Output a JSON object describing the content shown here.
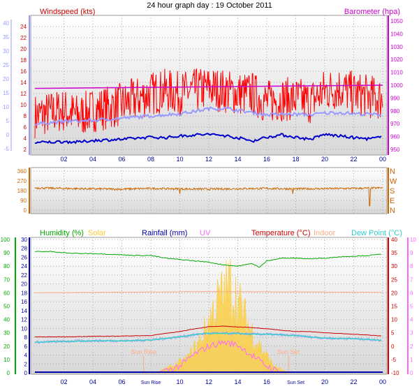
{
  "title": "24 hour graph day : 19 October 2011",
  "colors": {
    "windspeed": "#ff0000",
    "gust": "#ff0000",
    "avg_wind": "#9999ff",
    "wind_axis": "#9999ff",
    "barometer": "#cc00cc",
    "beaufort": "#0000cc",
    "direction": "#cc6600",
    "humidity": "#00aa00",
    "solar": "#ffcc33",
    "rainfall": "#0000aa",
    "uv": "#ff66ff",
    "temperature": "#cc0000",
    "indoor": "#ffaa88",
    "dewpoint": "#33cccc",
    "extra": "#aaaaee",
    "plot_bg_top": "#ffffff",
    "plot_bg_bottom": "#d8d8d8",
    "grid": "#aaaaaa",
    "time_axis": "#000099"
  },
  "chart_data": [
    {
      "type": "line",
      "panel": "wind-barometer",
      "left_title": "Windspeed (kts)",
      "right_title": "Barometer (hpa)",
      "left_outer_ticks": [
        "40",
        "35",
        "30",
        "25",
        "20",
        "15",
        "10",
        "5",
        "0",
        "-5"
      ],
      "left_inner_ticks": [
        "24",
        "22",
        "20",
        "18",
        "16",
        "14",
        "12",
        "10",
        "8",
        "6",
        "4",
        "2"
      ],
      "right_ticks": [
        "1050",
        "1040",
        "1030",
        "1020",
        "1010",
        "1000",
        "990",
        "980",
        "970",
        "960",
        "950"
      ],
      "x_tick_labels": [
        "02",
        "04",
        "06",
        "08",
        "10",
        "12",
        "14",
        "16",
        "18",
        "20",
        "22",
        "00"
      ],
      "ylim": [
        2,
        25
      ],
      "right_ylim": [
        950,
        1050
      ],
      "series": [
        {
          "key": "gust",
          "hours": [
            0,
            1,
            2,
            3,
            4,
            5,
            6,
            7,
            8,
            9,
            10,
            11,
            12,
            13,
            14,
            15,
            16,
            17,
            18,
            19,
            20,
            21,
            22,
            23,
            24
          ],
          "values": [
            8,
            8.5,
            9,
            8,
            9,
            9.5,
            10,
            11,
            12,
            12.5,
            12,
            12.5,
            13,
            12.5,
            12,
            12,
            10.5,
            11,
            11,
            10.5,
            12.5,
            13,
            12,
            11.5,
            11
          ]
        },
        {
          "key": "avg_wind",
          "hours": [
            0,
            1,
            2,
            3,
            4,
            5,
            6,
            7,
            8,
            9,
            10,
            11,
            12,
            13,
            14,
            15,
            16,
            17,
            18,
            19,
            20,
            21,
            22,
            23,
            24
          ],
          "values": [
            6.5,
            6.8,
            7,
            7.1,
            7.2,
            7.4,
            7.6,
            7.8,
            8,
            8.2,
            8.4,
            8.8,
            9.3,
            9.4,
            9,
            8.6,
            8.2,
            8.3,
            8.3,
            8.2,
            8.5,
            8.6,
            8.4,
            8.3,
            8.2
          ]
        },
        {
          "key": "beaufort",
          "hours": [
            0,
            1,
            2,
            3,
            4,
            5,
            6,
            7,
            8,
            9,
            10,
            11,
            12,
            13,
            14,
            15,
            16,
            17,
            18,
            19,
            20,
            21,
            22,
            23,
            24
          ],
          "values": [
            3.2,
            3.3,
            3.4,
            3.3,
            3.6,
            3.7,
            3.8,
            4,
            4.2,
            4.1,
            4.4,
            4.6,
            4.7,
            4.5,
            4.1,
            3.5,
            4.2,
            4.6,
            4.2,
            3.8,
            4.7,
            4.4,
            4.1,
            3.9,
            4.2
          ]
        },
        {
          "key": "barometer",
          "hours": [
            0,
            24
          ],
          "values": [
            997.5,
            1000
          ]
        }
      ]
    },
    {
      "type": "line",
      "panel": "wind-direction",
      "left_ticks": [
        "360",
        "270",
        "180",
        "90",
        "0"
      ],
      "right_ticks": [
        "N",
        "W",
        "S",
        "E",
        "N"
      ],
      "ylim": [
        0,
        360
      ],
      "series": [
        {
          "key": "direction",
          "hours": [
            0,
            2,
            4,
            6,
            8,
            10,
            12,
            14,
            16,
            18,
            20,
            22,
            24
          ],
          "values": [
            205,
            200,
            196,
            194,
            200,
            196,
            194,
            198,
            200,
            196,
            198,
            200,
            205
          ]
        }
      ]
    },
    {
      "type": "line",
      "panel": "temperature-humidity",
      "legend": [
        "Humidity (%)",
        "Solar",
        "Rainfall (mm)",
        "UV",
        "Temperature (°C)",
        "Indoor",
        "Dew Point (°C)"
      ],
      "humidity_ticks": [
        "100",
        "90",
        "80",
        "70",
        "60",
        "50",
        "40",
        "30",
        "20",
        "10",
        "0"
      ],
      "rain_ticks": [
        "30",
        "28",
        "26",
        "24",
        "22",
        "20",
        "18",
        "16",
        "14",
        "12",
        "10",
        "8",
        "6",
        "4",
        "2",
        "0"
      ],
      "temp_ticks": [
        "40",
        "35",
        "30",
        "25",
        "20",
        "15",
        "10",
        "5",
        "0",
        "-5",
        "-10"
      ],
      "uv_ticks": [
        "10",
        "9",
        "8",
        "7",
        "6",
        "5",
        "4",
        "3",
        "2",
        "1",
        "0"
      ],
      "x_tick_labels": [
        "02",
        "04",
        "06",
        "Sun Rise",
        "10",
        "12",
        "14",
        "16",
        "Sun Set",
        "20",
        "22",
        "00"
      ],
      "markers": [
        {
          "label": "Sun Rise",
          "hour": 7.5
        },
        {
          "label": "Sun Set",
          "hour": 17.5
        }
      ],
      "ylim": [
        -10,
        40
      ],
      "series": [
        {
          "key": "humidity",
          "hours": [
            0,
            1,
            2,
            3,
            4,
            5,
            6,
            7,
            8,
            9,
            10,
            11,
            12,
            13,
            14,
            15,
            15.5,
            16,
            17,
            18,
            19,
            20,
            21,
            22,
            23,
            24
          ],
          "values": [
            91,
            91,
            90,
            89.5,
            89.5,
            89,
            88.5,
            88,
            88,
            86,
            85,
            84,
            83,
            81,
            80,
            82,
            79,
            84,
            86,
            86,
            85.5,
            86,
            87,
            87.5,
            88,
            89
          ]
        },
        {
          "key": "indoor",
          "hours": [
            0,
            12,
            24
          ],
          "values": [
            20,
            20.5,
            20.2
          ]
        },
        {
          "key": "temperature",
          "hours": [
            0,
            2,
            4,
            6,
            8,
            10,
            11,
            12,
            13,
            14,
            15,
            16,
            17,
            18,
            19,
            20,
            22,
            24
          ],
          "values": [
            3.5,
            3.5,
            3.7,
            3.8,
            4,
            5.5,
            6.5,
            7.3,
            7.5,
            7.2,
            7,
            6.5,
            6,
            5.5,
            5.5,
            5,
            4.5,
            3.8
          ]
        },
        {
          "key": "dewpoint",
          "hours": [
            0,
            2,
            4,
            6,
            8,
            10,
            11,
            12,
            13,
            14,
            15,
            16,
            17,
            18,
            20,
            22,
            24
          ],
          "values": [
            1.5,
            1.8,
            2,
            2,
            2.3,
            3.5,
            4.3,
            4.8,
            4.8,
            4.8,
            4.5,
            4.5,
            4.2,
            4,
            3,
            2.8,
            2.2
          ]
        },
        {
          "key": "solar",
          "hours": [
            7.5,
            8.5,
            9.5,
            10.5,
            11.5,
            12.5,
            13.5,
            14.5,
            15.5,
            16.5,
            17.5
          ],
          "values": [
            0,
            1,
            5,
            10,
            25,
            50,
            65,
            40,
            20,
            5,
            0
          ]
        },
        {
          "key": "uv",
          "hours": [
            8.5,
            10,
            11,
            12,
            13,
            14,
            15,
            16,
            17
          ],
          "values": [
            0,
            0.5,
            1.4,
            2,
            2.3,
            2.1,
            1.3,
            0.5,
            0
          ]
        },
        {
          "key": "rainfall",
          "hours": [
            0,
            24
          ],
          "values": [
            0,
            0
          ]
        }
      ]
    }
  ]
}
